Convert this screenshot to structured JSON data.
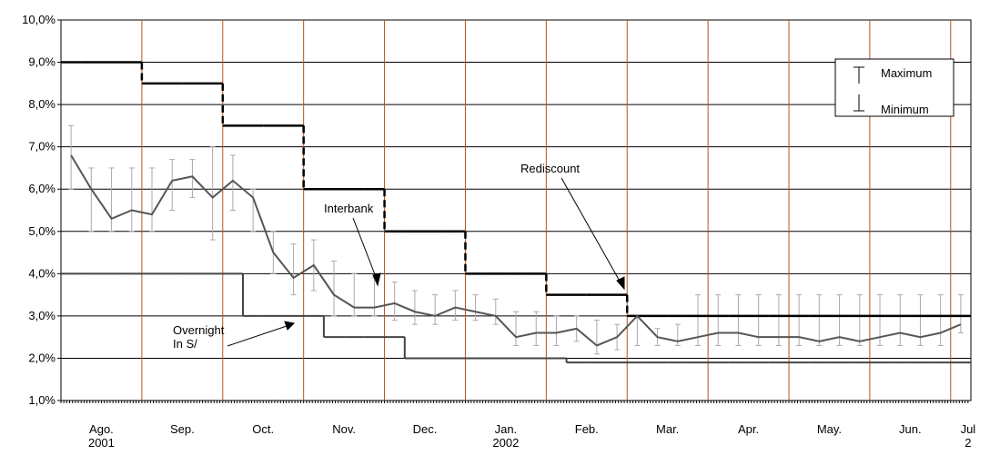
{
  "chart_data": {
    "type": "line",
    "categories": [
      null,
      "Ago.\n2001",
      null,
      null,
      null,
      "Sep.",
      null,
      null,
      null,
      "Oct.",
      null,
      null,
      null,
      "Nov.",
      null,
      null,
      null,
      "Dec.",
      null,
      null,
      null,
      "Jan.\n2002",
      null,
      null,
      null,
      "Feb.",
      null,
      null,
      null,
      "Mar.",
      null,
      null,
      null,
      "Apr.",
      null,
      null,
      null,
      "May.",
      null,
      null,
      null,
      "Jun.",
      null,
      null,
      "Jul 2"
    ],
    "interbank": {
      "label": "Interbank",
      "color": "#555555",
      "values": [
        6.8,
        6.0,
        5.3,
        5.5,
        5.4,
        6.2,
        6.3,
        5.8,
        6.2,
        5.8,
        4.5,
        3.9,
        4.2,
        3.5,
        3.2,
        3.2,
        3.3,
        3.1,
        3.0,
        3.2,
        3.1,
        3.0,
        2.5,
        2.6,
        2.6,
        2.7,
        2.3,
        2.5,
        3.0,
        2.5,
        2.4,
        2.5,
        2.6,
        2.6,
        2.5,
        2.5,
        2.5,
        2.4,
        2.5,
        2.4,
        2.5,
        2.6,
        2.5,
        2.6,
        2.8
      ]
    },
    "series": [
      {
        "name": "Maximum",
        "color": "#aaaaaa",
        "values": [
          7.5,
          6.5,
          6.5,
          6.5,
          6.5,
          6.7,
          6.7,
          7.0,
          6.8,
          6.0,
          5.0,
          4.7,
          4.8,
          4.3,
          4.0,
          3.9,
          3.8,
          3.6,
          3.5,
          3.6,
          3.5,
          3.4,
          3.1,
          3.1,
          3.0,
          3.0,
          2.9,
          2.8,
          3.0,
          2.7,
          2.8,
          3.5,
          3.5,
          3.5,
          3.5,
          3.5,
          3.5,
          3.5,
          3.5,
          3.5,
          3.5,
          3.5,
          3.5,
          3.5,
          3.5
        ]
      },
      {
        "name": "Minimum",
        "color": "#aaaaaa",
        "values": [
          6.0,
          5.0,
          5.0,
          5.0,
          5.0,
          5.5,
          5.8,
          4.8,
          5.5,
          5.0,
          4.0,
          3.5,
          3.6,
          3.0,
          3.0,
          3.0,
          2.9,
          2.8,
          2.8,
          2.9,
          2.9,
          2.8,
          2.3,
          2.3,
          2.3,
          2.4,
          2.1,
          2.2,
          2.3,
          2.3,
          2.3,
          2.3,
          2.3,
          2.3,
          2.3,
          2.3,
          2.3,
          2.3,
          2.3,
          2.3,
          2.3,
          2.3,
          2.3,
          2.3,
          2.6
        ]
      }
    ],
    "rediscount": {
      "label": "Rediscount",
      "color": "#000000",
      "values": [
        9.0,
        9.0,
        9.0,
        9.0,
        8.5,
        8.5,
        8.5,
        8.5,
        7.5,
        7.5,
        7.5,
        7.5,
        6.0,
        6.0,
        6.0,
        6.0,
        5.0,
        5.0,
        5.0,
        5.0,
        4.0,
        4.0,
        4.0,
        4.0,
        3.5,
        3.5,
        3.5,
        3.5,
        3.0,
        3.0,
        3.0,
        3.0,
        3.0,
        3.0,
        3.0,
        3.0,
        3.0,
        3.0,
        3.0,
        3.0,
        3.0,
        3.0,
        3.0,
        3.0,
        3.0
      ]
    },
    "overnight": {
      "label": "Overnight\nIn S/",
      "color": "#444444",
      "values": [
        4.0,
        4.0,
        4.0,
        4.0,
        4.0,
        4.0,
        4.0,
        4.0,
        4.0,
        3.0,
        3.0,
        3.0,
        3.0,
        2.5,
        2.5,
        2.5,
        2.5,
        2.0,
        2.0,
        2.0,
        2.0,
        2.0,
        2.0,
        2.0,
        2.0,
        1.9,
        1.9,
        1.9,
        1.9,
        1.9,
        1.9,
        1.9,
        1.9,
        1.9,
        1.9,
        1.9,
        1.9,
        1.9,
        1.9,
        1.9,
        1.9,
        1.9,
        1.9,
        1.9,
        1.9
      ]
    },
    "ylim": [
      1,
      10
    ],
    "yticks": [
      {
        "value": 1,
        "label": "1,0%"
      },
      {
        "value": 2,
        "label": "2,0%"
      },
      {
        "value": 3,
        "label": "3,0%"
      },
      {
        "value": 4,
        "label": "4,0%"
      },
      {
        "value": 5,
        "label": "5,0%"
      },
      {
        "value": 6,
        "label": "6,0%"
      },
      {
        "value": 7,
        "label": "7,0%"
      },
      {
        "value": 8,
        "label": "8,0%"
      },
      {
        "value": 9,
        "label": "9,0%"
      },
      {
        "value": 10,
        "label": "10,0%"
      }
    ],
    "grid": true,
    "separator_color": "#b5541a",
    "legend": "top-right"
  }
}
